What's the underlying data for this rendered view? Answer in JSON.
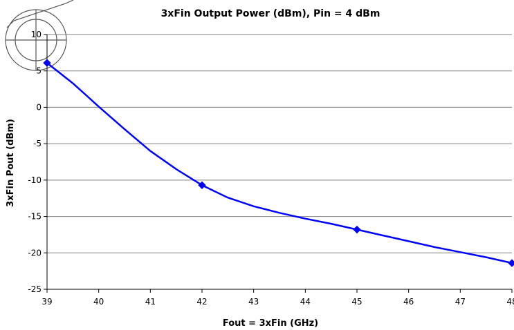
{
  "chart_data": {
    "type": "line",
    "title": "3xFin Output Power (dBm), Pin = 4 dBm",
    "xlabel": "Fout = 3xFin (GHz)",
    "ylabel": "3xFin Pout (dBm)",
    "xlim": [
      39,
      48
    ],
    "ylim": [
      -25,
      10
    ],
    "x_ticks": [
      "39",
      "40",
      "41",
      "42",
      "43",
      "44",
      "45",
      "46",
      "47",
      "48"
    ],
    "y_ticks": [
      "10",
      "5",
      "0",
      "-5",
      "-10",
      "-15",
      "-20",
      "-25"
    ],
    "grid": "horizontal",
    "series_color": "#0000ff",
    "markers": [
      {
        "x": 39,
        "y": 6.1
      },
      {
        "x": 42,
        "y": -10.7
      },
      {
        "x": 45,
        "y": -16.8
      },
      {
        "x": 48,
        "y": -21.4
      }
    ],
    "curve": [
      {
        "x": 39,
        "y": 6.1
      },
      {
        "x": 39.5,
        "y": 3.3
      },
      {
        "x": 40,
        "y": 0.1
      },
      {
        "x": 40.5,
        "y": -3.0
      },
      {
        "x": 41,
        "y": -6.0
      },
      {
        "x": 41.5,
        "y": -8.5
      },
      {
        "x": 42,
        "y": -10.7
      },
      {
        "x": 42.5,
        "y": -12.4
      },
      {
        "x": 43,
        "y": -13.6
      },
      {
        "x": 43.5,
        "y": -14.5
      },
      {
        "x": 44,
        "y": -15.3
      },
      {
        "x": 44.5,
        "y": -16.0
      },
      {
        "x": 45,
        "y": -16.8
      },
      {
        "x": 45.5,
        "y": -17.6
      },
      {
        "x": 46,
        "y": -18.4
      },
      {
        "x": 46.5,
        "y": -19.2
      },
      {
        "x": 47,
        "y": -19.9
      },
      {
        "x": 47.5,
        "y": -20.6
      },
      {
        "x": 48,
        "y": -21.4
      }
    ]
  }
}
